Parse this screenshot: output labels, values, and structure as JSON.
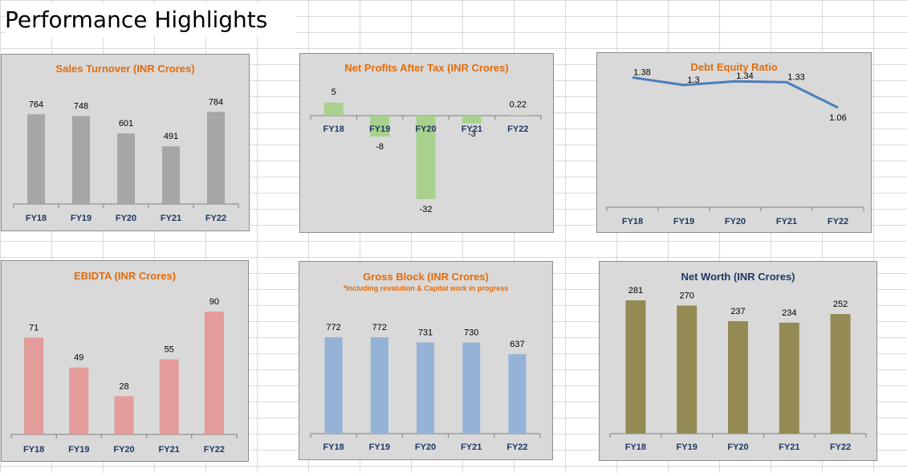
{
  "page": {
    "title": "Performance Highlights"
  },
  "chart_data": [
    {
      "id": "sales",
      "type": "bar",
      "title": "Sales Turnover (INR Crores)",
      "subtitle": "",
      "categories": [
        "FY18",
        "FY19",
        "FY20",
        "FY21",
        "FY22"
      ],
      "series": [
        {
          "values": [
            764,
            748,
            601,
            491,
            784
          ]
        }
      ],
      "labels": [
        "764",
        "748",
        "601",
        "491",
        "784"
      ],
      "ylim": [
        0,
        1000
      ],
      "grid": false,
      "colors": {
        "bar": "#a6a6a6",
        "title": "#e46c0a"
      }
    },
    {
      "id": "netprofit",
      "type": "bar",
      "title": "Net Profits After Tax (INR Crores)",
      "subtitle": "",
      "categories": [
        "FY18",
        "FY19",
        "FY20",
        "FY21",
        "FY22"
      ],
      "series": [
        {
          "values": [
            5,
            -8,
            -32,
            -3,
            0.22
          ]
        }
      ],
      "labels": [
        "5",
        "-8",
        "-32",
        "-3",
        "0.22"
      ],
      "ylim": [
        -32,
        5
      ],
      "grid": false,
      "colors": {
        "bar": "#a9d18e",
        "title": "#e46c0a"
      }
    },
    {
      "id": "debtequity",
      "type": "line",
      "title": "Debt Equity Ratio",
      "subtitle": "",
      "categories": [
        "FY18",
        "FY19",
        "FY20",
        "FY21",
        "FY22"
      ],
      "series": [
        {
          "values": [
            1.38,
            1.3,
            1.34,
            1.33,
            1.06
          ]
        }
      ],
      "labels": [
        "1.38",
        "1.3",
        "1.34",
        "1.33",
        "1.06"
      ],
      "ylim": [
        0,
        1.5
      ],
      "grid": false,
      "colors": {
        "line": "#4a7ebb",
        "title": "#e46c0a"
      }
    },
    {
      "id": "ebidta",
      "type": "bar",
      "title": "EBIDTA (INR Crores)",
      "subtitle": "",
      "categories": [
        "FY18",
        "FY19",
        "FY20",
        "FY21",
        "FY22"
      ],
      "series": [
        {
          "values": [
            71,
            49,
            28,
            55,
            90
          ]
        }
      ],
      "labels": [
        "71",
        "49",
        "28",
        "55",
        "90"
      ],
      "ylim": [
        0,
        100
      ],
      "grid": false,
      "colors": {
        "bar": "#e39c9a",
        "title": "#e46c0a"
      }
    },
    {
      "id": "grossblock",
      "type": "bar",
      "title": "Gross Block (INR Crores)",
      "subtitle": "*Including revalution & Capital work in  progress",
      "categories": [
        "FY18",
        "FY19",
        "FY20",
        "FY21",
        "FY22"
      ],
      "series": [
        {
          "values": [
            772,
            772,
            731,
            730,
            637
          ]
        }
      ],
      "labels": [
        "772",
        "772",
        "731",
        "730",
        "637"
      ],
      "ylim": [
        0,
        1000
      ],
      "grid": false,
      "colors": {
        "bar": "#95b3d7",
        "title": "#e46c0a"
      }
    },
    {
      "id": "networth",
      "type": "bar",
      "title": "Net Worth (INR Crores)",
      "subtitle": "",
      "categories": [
        "FY18",
        "FY19",
        "FY20",
        "FY21",
        "FY22"
      ],
      "series": [
        {
          "values": [
            281,
            270,
            237,
            234,
            252
          ]
        }
      ],
      "labels": [
        "281",
        "270",
        "237",
        "234",
        "252"
      ],
      "ylim": [
        0,
        350
      ],
      "grid": false,
      "colors": {
        "bar": "#948a54",
        "title": "#1f3864"
      }
    }
  ]
}
